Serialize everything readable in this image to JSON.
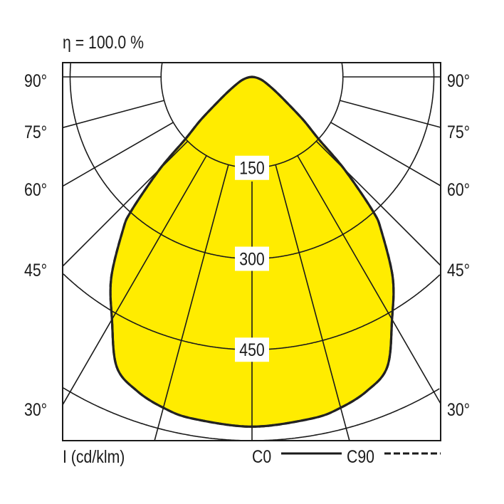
{
  "chart_data": {
    "type": "polar-line",
    "title": "η = 100.0 %",
    "unit_label": "I (cd/klm)",
    "radial_ticks": [
      150,
      300,
      450
    ],
    "radial_max": 600,
    "angle_ticks_left": [
      "90°",
      "75°",
      "60°",
      "45°",
      "30°"
    ],
    "angle_ticks_right": [
      "90°",
      "75°",
      "60°",
      "45°",
      "30°"
    ],
    "legend": {
      "c0": "C0",
      "c90": "C90"
    },
    "grid": true,
    "fill_color": "#ffec00",
    "series": [
      {
        "name": "C0",
        "style": "solid",
        "gamma": [
          0,
          10,
          15,
          20,
          25,
          30,
          35,
          40,
          42,
          45,
          47,
          50,
          55,
          60,
          70,
          80,
          90
        ],
        "intensity": [
          577,
          572,
          565,
          552,
          528,
          462,
          405,
          332,
          298,
          215,
          150,
          110,
          62,
          40,
          20,
          8,
          0
        ]
      },
      {
        "name": "C90",
        "style": "dashed",
        "gamma": [
          0,
          10,
          15,
          20,
          25,
          30,
          35,
          40,
          42,
          45,
          47,
          50,
          55,
          60,
          70,
          80,
          90
        ],
        "intensity": [
          577,
          572,
          565,
          552,
          528,
          462,
          405,
          332,
          298,
          215,
          150,
          110,
          62,
          40,
          20,
          8,
          0
        ]
      }
    ]
  }
}
